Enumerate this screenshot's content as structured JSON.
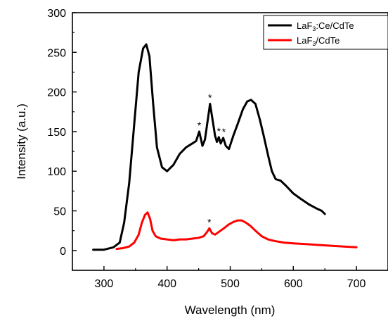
{
  "chart_data": {
    "type": "line",
    "xlabel": "Wavelength (nm)",
    "ylabel": "Intensity (a.u.)",
    "xlim": [
      250,
      750
    ],
    "ylim": [
      -25,
      300
    ],
    "x_ticks": [
      300,
      400,
      500,
      600,
      700
    ],
    "y_ticks": [
      0,
      50,
      100,
      150,
      200,
      250,
      300
    ],
    "grid": false,
    "legend": {
      "position": "top-right",
      "entries": [
        {
          "parts": [
            [
              "LaF",
              ""
            ],
            [
              "3",
              "sub"
            ],
            [
              ":Ce/CdTe",
              ""
            ]
          ],
          "color": "#000000"
        },
        {
          "parts": [
            [
              "LaF",
              ""
            ],
            [
              "3",
              "sub"
            ],
            [
              "/CdTe",
              ""
            ]
          ],
          "color": "#ff0000"
        }
      ]
    },
    "series": [
      {
        "color": "#000000",
        "points": [
          [
            283,
            1
          ],
          [
            300,
            1
          ],
          [
            315,
            4
          ],
          [
            325,
            10
          ],
          [
            332,
            35
          ],
          [
            340,
            85
          ],
          [
            348,
            160
          ],
          [
            355,
            225
          ],
          [
            362,
            255
          ],
          [
            367,
            260
          ],
          [
            372,
            245
          ],
          [
            378,
            185
          ],
          [
            384,
            130
          ],
          [
            392,
            105
          ],
          [
            400,
            100
          ],
          [
            410,
            108
          ],
          [
            420,
            122
          ],
          [
            430,
            130
          ],
          [
            440,
            135
          ],
          [
            446,
            138
          ],
          [
            451,
            150
          ],
          [
            456,
            132
          ],
          [
            460,
            140
          ],
          [
            465,
            168
          ],
          [
            468,
            185
          ],
          [
            472,
            165
          ],
          [
            476,
            145
          ],
          [
            479,
            137
          ],
          [
            482,
            143
          ],
          [
            485,
            135
          ],
          [
            489,
            142
          ],
          [
            493,
            132
          ],
          [
            498,
            128
          ],
          [
            505,
            145
          ],
          [
            512,
            160
          ],
          [
            520,
            178
          ],
          [
            527,
            188
          ],
          [
            533,
            190
          ],
          [
            540,
            185
          ],
          [
            547,
            165
          ],
          [
            553,
            145
          ],
          [
            560,
            120
          ],
          [
            566,
            100
          ],
          [
            572,
            90
          ],
          [
            580,
            88
          ],
          [
            588,
            82
          ],
          [
            600,
            72
          ],
          [
            612,
            65
          ],
          [
            625,
            58
          ],
          [
            637,
            53
          ],
          [
            645,
            50
          ],
          [
            650,
            46
          ]
        ]
      },
      {
        "color": "#ff0000",
        "points": [
          [
            320,
            2
          ],
          [
            330,
            3
          ],
          [
            340,
            5
          ],
          [
            348,
            10
          ],
          [
            355,
            20
          ],
          [
            360,
            35
          ],
          [
            365,
            45
          ],
          [
            369,
            48
          ],
          [
            373,
            40
          ],
          [
            377,
            25
          ],
          [
            382,
            18
          ],
          [
            390,
            15
          ],
          [
            400,
            14
          ],
          [
            410,
            13
          ],
          [
            420,
            14
          ],
          [
            430,
            14
          ],
          [
            440,
            15
          ],
          [
            450,
            16
          ],
          [
            458,
            18
          ],
          [
            463,
            23
          ],
          [
            467,
            28
          ],
          [
            471,
            22
          ],
          [
            476,
            20
          ],
          [
            483,
            24
          ],
          [
            490,
            28
          ],
          [
            498,
            33
          ],
          [
            505,
            36
          ],
          [
            512,
            38
          ],
          [
            518,
            38
          ],
          [
            525,
            35
          ],
          [
            532,
            31
          ],
          [
            540,
            25
          ],
          [
            550,
            18
          ],
          [
            560,
            14
          ],
          [
            570,
            12
          ],
          [
            585,
            10
          ],
          [
            600,
            9
          ],
          [
            620,
            8
          ],
          [
            640,
            7
          ],
          [
            660,
            6
          ],
          [
            680,
            5
          ],
          [
            700,
            4
          ]
        ]
      }
    ],
    "annotations": [
      {
        "text": "*",
        "x": 451,
        "y": 150
      },
      {
        "text": "*",
        "x": 468,
        "y": 185
      },
      {
        "text": "*",
        "x": 482,
        "y": 143
      },
      {
        "text": "*",
        "x": 490,
        "y": 142
      },
      {
        "text": "*",
        "x": 467,
        "y": 28
      }
    ]
  }
}
